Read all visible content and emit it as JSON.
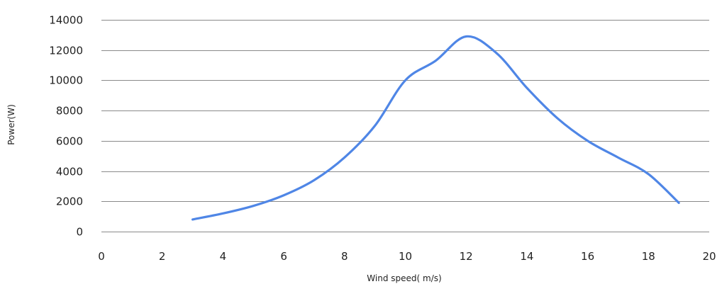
{
  "chart_data": {
    "type": "line",
    "title": "",
    "xlabel": "Wind speed( m/s)",
    "ylabel": "Power(W)",
    "xlim": [
      0,
      20
    ],
    "ylim": [
      0,
      14000
    ],
    "x_ticks": [
      "0",
      "2",
      "4",
      "6",
      "8",
      "10",
      "12",
      "14",
      "16",
      "18",
      "20"
    ],
    "y_ticks": [
      "0",
      "2000",
      "4000",
      "6000",
      "8000",
      "10000",
      "12000",
      "14000"
    ],
    "grid": true,
    "legend": "none",
    "series": [
      {
        "color": "#4f86e6",
        "x": [
          3,
          4,
          5,
          6,
          7,
          8,
          9,
          10,
          11,
          12,
          13,
          14,
          15,
          16,
          17,
          18,
          19
        ],
        "y": [
          800,
          1200,
          1700,
          2400,
          3400,
          4900,
          7000,
          10000,
          11300,
          12900,
          11800,
          9500,
          7500,
          6000,
          4900,
          3800,
          1900
        ]
      }
    ]
  }
}
